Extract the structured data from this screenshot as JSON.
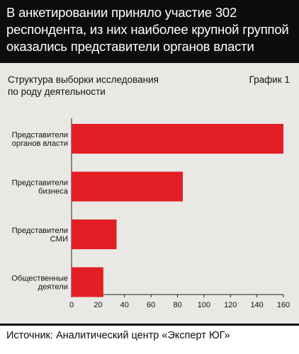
{
  "headline": {
    "line1": "В анкетировании приняло участие 302",
    "line2": "респондента, из них наиболее крупной группой",
    "line3": "оказались представители органов власти"
  },
  "subtitle": {
    "line1": "Структура выборки исследования",
    "line2": "по роду деятельности"
  },
  "graph_label": "График 1",
  "source": "Источник: Аналитический центр «Эксперт ЮГ»",
  "colors": {
    "bar": "#e31e24",
    "panel": "#eae8e4",
    "headline_bg": "#0d0d0d"
  },
  "chart_data": {
    "type": "bar",
    "orientation": "horizontal",
    "categories": [
      [
        "Представители",
        "органов власти"
      ],
      [
        "Представители",
        "бизнеса"
      ],
      [
        "Представители",
        "СМИ"
      ],
      [
        "Общественные",
        "деятели"
      ]
    ],
    "values": [
      160,
      84,
      34,
      24
    ],
    "xlim": [
      0,
      160
    ],
    "xticks": [
      0,
      20,
      40,
      60,
      80,
      100,
      120,
      140,
      160
    ],
    "grid": false
  }
}
